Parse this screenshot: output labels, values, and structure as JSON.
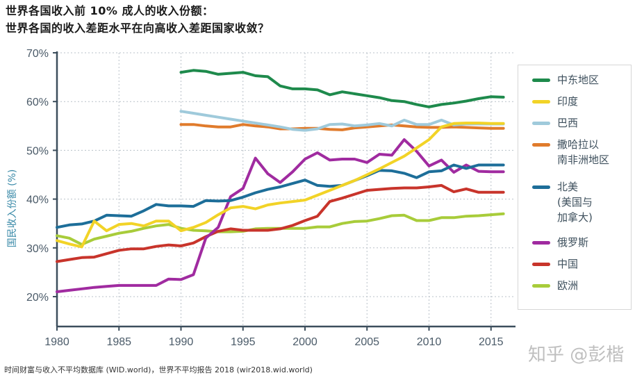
{
  "chart_data": {
    "type": "line",
    "title": "世界各国收入前 10% 成人的收入份额：",
    "subtitle": "世界各国的收入差距水平在向高收入差距国家收敛？",
    "xlabel": "",
    "ylabel": "国民收入份额 (%)",
    "xlim": [
      1980,
      2016
    ],
    "ylim": [
      20,
      70
    ],
    "x_ticks": [
      "1980",
      "1985",
      "1990",
      "1995",
      "2000",
      "2005",
      "2010",
      "2015"
    ],
    "y_ticks": [
      "20%",
      "30%",
      "40%",
      "50%",
      "60%",
      "70%"
    ],
    "grid": true,
    "legend_position": "right",
    "series": [
      {
        "name": "中东地区",
        "color": "#1e8a4c",
        "x": [
          1990,
          1991,
          1992,
          1993,
          1994,
          1995,
          1996,
          1997,
          1998,
          1999,
          2000,
          2001,
          2002,
          2003,
          2004,
          2005,
          2006,
          2007,
          2008,
          2009,
          2010,
          2011,
          2012,
          2013,
          2014,
          2015,
          2016
        ],
        "y": [
          66.0,
          66.4,
          66.2,
          65.6,
          65.8,
          66.0,
          65.3,
          65.1,
          63.2,
          62.6,
          62.6,
          62.4,
          61.4,
          62.0,
          61.6,
          61.2,
          60.8,
          60.2,
          60.0,
          59.4,
          58.9,
          59.4,
          59.7,
          60.1,
          60.6,
          61.0,
          60.9
        ]
      },
      {
        "name": "印度",
        "color": "#f2d327",
        "x": [
          1980,
          1981,
          1982,
          1983,
          1984,
          1985,
          1986,
          1987,
          1988,
          1989,
          1990,
          1991,
          1992,
          1993,
          1994,
          1995,
          1996,
          1997,
          1998,
          1999,
          2000,
          2001,
          2002,
          2003,
          2004,
          2005,
          2006,
          2007,
          2008,
          2009,
          2010,
          2011,
          2012,
          2013,
          2014,
          2015,
          2016
        ],
        "y": [
          31.5,
          30.8,
          30.2,
          35.5,
          33.5,
          34.8,
          35.0,
          34.5,
          35.5,
          35.5,
          33.5,
          34.2,
          35.2,
          36.8,
          38.2,
          38.5,
          38.0,
          38.8,
          39.2,
          39.5,
          39.8,
          40.8,
          41.8,
          42.8,
          43.8,
          45.0,
          46.2,
          47.5,
          48.8,
          50.5,
          52.2,
          54.8,
          55.5,
          55.6,
          55.6,
          55.5,
          55.5
        ]
      },
      {
        "name": "巴西",
        "color": "#9fcadb",
        "x": [
          1990,
          1991,
          1992,
          1993,
          1994,
          1995,
          1996,
          1997,
          1998,
          1999,
          2000,
          2001,
          2002,
          2003,
          2004,
          2005,
          2006,
          2007,
          2008,
          2009,
          2010,
          2011,
          2012,
          2013,
          2014,
          2015,
          2016
        ],
        "y": [
          58.0,
          57.6,
          57.2,
          56.8,
          56.4,
          56.0,
          55.6,
          55.2,
          54.8,
          54.3,
          54.1,
          54.4,
          55.3,
          55.4,
          55.0,
          55.2,
          55.5,
          55.0,
          56.2,
          55.3,
          55.3,
          56.2,
          55.2,
          55.4,
          55.4,
          55.4,
          55.4
        ]
      },
      {
        "name": "撒哈拉以\n南非洲地区",
        "color": "#e07b2c",
        "x": [
          1990,
          1991,
          1992,
          1993,
          1994,
          1995,
          1996,
          1997,
          1998,
          1999,
          2000,
          2001,
          2002,
          2003,
          2004,
          2005,
          2006,
          2007,
          2008,
          2009,
          2010,
          2011,
          2012,
          2013,
          2014,
          2015,
          2016
        ],
        "y": [
          55.3,
          55.3,
          55.0,
          54.8,
          54.8,
          55.3,
          55.0,
          54.8,
          54.4,
          54.4,
          54.5,
          54.5,
          54.3,
          54.2,
          54.6,
          54.8,
          55.0,
          55.2,
          55.0,
          54.8,
          54.7,
          54.7,
          54.8,
          54.7,
          54.6,
          54.5,
          54.5
        ]
      },
      {
        "name": "北美\n(美国与\n加拿大)",
        "color": "#1d6e99",
        "x": [
          1980,
          1981,
          1982,
          1983,
          1984,
          1985,
          1986,
          1987,
          1988,
          1989,
          1990,
          1991,
          1992,
          1993,
          1994,
          1995,
          1996,
          1997,
          1998,
          1999,
          2000,
          2001,
          2002,
          2003,
          2004,
          2005,
          2006,
          2007,
          2008,
          2009,
          2010,
          2011,
          2012,
          2013,
          2014,
          2015,
          2016
        ],
        "y": [
          34.2,
          34.7,
          34.9,
          35.5,
          36.7,
          36.6,
          36.5,
          37.6,
          38.9,
          38.6,
          38.6,
          38.5,
          39.7,
          39.6,
          39.7,
          40.4,
          41.3,
          42.0,
          42.5,
          43.2,
          43.9,
          42.8,
          42.6,
          42.8,
          43.8,
          44.8,
          45.9,
          45.8,
          45.3,
          44.4,
          45.6,
          45.8,
          47.0,
          46.3,
          47.0,
          47.0,
          47.0
        ]
      },
      {
        "name": "俄罗斯",
        "color": "#a02ba0",
        "x": [
          1980,
          1981,
          1982,
          1983,
          1984,
          1985,
          1986,
          1987,
          1988,
          1989,
          1990,
          1991,
          1992,
          1993,
          1994,
          1995,
          1996,
          1997,
          1998,
          1999,
          2000,
          2001,
          2002,
          2003,
          2004,
          2005,
          2006,
          2007,
          2008,
          2009,
          2010,
          2011,
          2012,
          2013,
          2014,
          2015,
          2016
        ],
        "y": [
          21.0,
          21.3,
          21.6,
          21.9,
          22.1,
          22.3,
          22.3,
          22.3,
          22.3,
          23.6,
          23.5,
          24.5,
          32.0,
          34.2,
          40.5,
          42.2,
          48.4,
          45.2,
          43.4,
          45.6,
          48.2,
          49.5,
          48.0,
          48.2,
          48.2,
          47.5,
          49.2,
          49.0,
          52.2,
          49.8,
          46.8,
          48.0,
          45.5,
          47.0,
          45.7,
          45.6,
          45.6
        ]
      },
      {
        "name": "中国",
        "color": "#c8342b",
        "x": [
          1980,
          1981,
          1982,
          1983,
          1984,
          1985,
          1986,
          1987,
          1988,
          1989,
          1990,
          1991,
          1992,
          1993,
          1994,
          1995,
          1996,
          1997,
          1998,
          1999,
          2000,
          2001,
          2002,
          2003,
          2004,
          2005,
          2006,
          2007,
          2008,
          2009,
          2010,
          2011,
          2012,
          2013,
          2014,
          2015,
          2016
        ],
        "y": [
          27.2,
          27.6,
          28.0,
          28.1,
          28.8,
          29.5,
          29.8,
          29.8,
          30.3,
          30.6,
          30.4,
          31.0,
          32.3,
          33.4,
          33.9,
          33.6,
          33.6,
          33.6,
          33.9,
          34.6,
          35.6,
          36.5,
          39.5,
          40.2,
          41.0,
          41.8,
          42.0,
          42.2,
          42.3,
          42.3,
          42.5,
          42.8,
          41.5,
          42.1,
          41.4,
          41.4,
          41.4
        ]
      },
      {
        "name": "欧洲",
        "color": "#a8cc3a",
        "x": [
          1980,
          1981,
          1982,
          1983,
          1984,
          1985,
          1986,
          1987,
          1988,
          1989,
          1990,
          1991,
          1992,
          1993,
          1994,
          1995,
          1996,
          1997,
          1998,
          1999,
          2000,
          2001,
          2002,
          2003,
          2004,
          2005,
          2006,
          2007,
          2008,
          2009,
          2010,
          2011,
          2012,
          2013,
          2014,
          2015,
          2016
        ],
        "y": [
          32.5,
          32.0,
          30.7,
          31.8,
          32.4,
          33.0,
          33.4,
          34.0,
          34.5,
          34.8,
          34.0,
          33.6,
          33.5,
          33.3,
          33.3,
          33.4,
          33.9,
          34.0,
          34.0,
          34.0,
          34.0,
          34.3,
          34.3,
          35.0,
          35.4,
          35.5,
          36.0,
          36.6,
          36.7,
          35.6,
          35.6,
          36.2,
          36.2,
          36.5,
          36.6,
          36.8,
          37.0
        ]
      }
    ]
  },
  "source_text": "时间财富与收入不平均数据库 (WID.world)，世界不平均报告 2018 (wir2018.wid.world)",
  "watermark_text": "知乎 @彭楷"
}
